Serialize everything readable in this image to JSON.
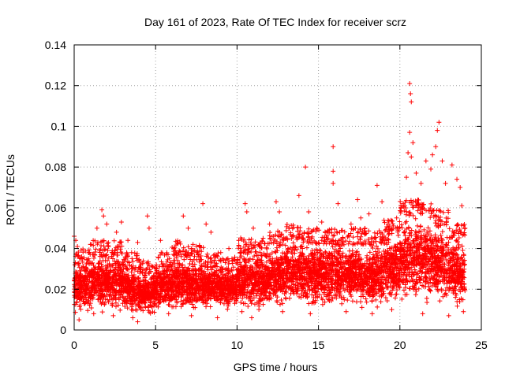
{
  "chart_data": {
    "type": "scatter",
    "title": "Day 161 of 2023, Rate Of TEC Index for receiver scrz",
    "xlabel": "GPS time / hours",
    "ylabel": "ROTI / TECUs",
    "xlim": [
      0,
      25
    ],
    "ylim": [
      0,
      0.14
    ],
    "xticks": [
      0,
      5,
      10,
      15,
      20,
      25
    ],
    "xtick_labels": [
      "0",
      "5",
      "10",
      "15",
      "20",
      "25"
    ],
    "yticks": [
      0,
      0.02,
      0.04,
      0.06,
      0.08,
      0.1,
      0.12,
      0.14
    ],
    "ytick_labels": [
      "0",
      "0.02",
      "0.04",
      "0.06",
      "0.08",
      "0.1",
      "0.12",
      "0.14"
    ],
    "grid": true,
    "marker": "+",
    "series": [
      {
        "name": "ROTI",
        "color": "#ff0000",
        "note": "dense cloud of points 0.005-0.05 TECU/s across 0-24 h; enhanced activity 20-23 h",
        "points": [
          [
            0.0,
            0.046
          ],
          [
            0.1,
            0.044
          ],
          [
            0.2,
            0.041
          ],
          [
            0.5,
            0.035
          ],
          [
            1.0,
            0.042
          ],
          [
            1.4,
            0.05
          ],
          [
            1.7,
            0.059
          ],
          [
            1.8,
            0.056
          ],
          [
            2.0,
            0.052
          ],
          [
            2.6,
            0.048
          ],
          [
            2.9,
            0.053
          ],
          [
            3.3,
            0.044
          ],
          [
            3.9,
            0.043
          ],
          [
            4.5,
            0.056
          ],
          [
            4.6,
            0.05
          ],
          [
            5.3,
            0.044
          ],
          [
            6.1,
            0.04
          ],
          [
            6.7,
            0.056
          ],
          [
            7.0,
            0.05
          ],
          [
            7.4,
            0.039
          ],
          [
            7.9,
            0.062
          ],
          [
            8.1,
            0.052
          ],
          [
            8.4,
            0.048
          ],
          [
            9.0,
            0.038
          ],
          [
            9.5,
            0.04
          ],
          [
            10.5,
            0.062
          ],
          [
            10.6,
            0.058
          ],
          [
            11.0,
            0.05
          ],
          [
            11.6,
            0.045
          ],
          [
            12.0,
            0.052
          ],
          [
            12.4,
            0.063
          ],
          [
            12.6,
            0.058
          ],
          [
            13.2,
            0.05
          ],
          [
            13.8,
            0.066
          ],
          [
            14.2,
            0.08
          ],
          [
            14.4,
            0.058
          ],
          [
            14.9,
            0.05
          ],
          [
            15.2,
            0.053
          ],
          [
            15.6,
            0.045
          ],
          [
            15.9,
            0.09
          ],
          [
            15.9,
            0.078
          ],
          [
            15.9,
            0.072
          ],
          [
            16.2,
            0.062
          ],
          [
            16.3,
            0.048
          ],
          [
            17.0,
            0.052
          ],
          [
            17.4,
            0.064
          ],
          [
            17.6,
            0.055
          ],
          [
            18.1,
            0.057
          ],
          [
            18.6,
            0.071
          ],
          [
            18.9,
            0.063
          ],
          [
            19.3,
            0.05
          ],
          [
            19.8,
            0.055
          ],
          [
            20.2,
            0.062
          ],
          [
            20.4,
            0.075
          ],
          [
            20.6,
            0.121
          ],
          [
            20.65,
            0.116
          ],
          [
            20.7,
            0.112
          ],
          [
            20.6,
            0.097
          ],
          [
            20.8,
            0.092
          ],
          [
            20.5,
            0.087
          ],
          [
            20.7,
            0.085
          ],
          [
            21.0,
            0.077
          ],
          [
            21.3,
            0.072
          ],
          [
            21.6,
            0.083
          ],
          [
            21.9,
            0.079
          ],
          [
            22.0,
            0.086
          ],
          [
            22.2,
            0.09
          ],
          [
            22.4,
            0.102
          ],
          [
            22.3,
            0.098
          ],
          [
            22.6,
            0.083
          ],
          [
            22.8,
            0.072
          ],
          [
            23.2,
            0.081
          ],
          [
            23.5,
            0.074
          ],
          [
            23.7,
            0.07
          ],
          [
            23.8,
            0.061
          ],
          [
            24.0,
            0.05
          ],
          [
            0.3,
            0.005
          ],
          [
            1.2,
            0.008
          ],
          [
            2.4,
            0.007
          ],
          [
            3.6,
            0.006
          ],
          [
            3.9,
            0.004
          ],
          [
            5.8,
            0.008
          ],
          [
            7.2,
            0.007
          ],
          [
            8.8,
            0.006
          ],
          [
            10.3,
            0.009
          ],
          [
            10.9,
            0.006
          ],
          [
            12.8,
            0.009
          ],
          [
            14.5,
            0.008
          ],
          [
            16.7,
            0.009
          ],
          [
            18.3,
            0.008
          ],
          [
            19.5,
            0.01
          ],
          [
            21.4,
            0.008
          ],
          [
            23.0,
            0.007
          ],
          [
            23.9,
            0.009
          ]
        ],
        "bands": [
          [
            0,
            1,
            0.007,
            0.036
          ],
          [
            1,
            2,
            0.008,
            0.04
          ],
          [
            2,
            3,
            0.007,
            0.04
          ],
          [
            3,
            4,
            0.006,
            0.034
          ],
          [
            4,
            5,
            0.007,
            0.03
          ],
          [
            5,
            6,
            0.008,
            0.034
          ],
          [
            6,
            7,
            0.007,
            0.04
          ],
          [
            7,
            8,
            0.008,
            0.038
          ],
          [
            8,
            9,
            0.008,
            0.034
          ],
          [
            9,
            10,
            0.009,
            0.032
          ],
          [
            10,
            11,
            0.008,
            0.042
          ],
          [
            11,
            12,
            0.009,
            0.04
          ],
          [
            12,
            13,
            0.009,
            0.045
          ],
          [
            13,
            14,
            0.009,
            0.048
          ],
          [
            14,
            15,
            0.009,
            0.046
          ],
          [
            15,
            16,
            0.009,
            0.046
          ],
          [
            16,
            17,
            0.009,
            0.045
          ],
          [
            17,
            18,
            0.009,
            0.046
          ],
          [
            18,
            19,
            0.009,
            0.045
          ],
          [
            19,
            20,
            0.01,
            0.05
          ],
          [
            20,
            21,
            0.01,
            0.06
          ],
          [
            21,
            22,
            0.01,
            0.06
          ],
          [
            22,
            23,
            0.01,
            0.055
          ],
          [
            23,
            24,
            0.009,
            0.048
          ]
        ]
      }
    ]
  }
}
